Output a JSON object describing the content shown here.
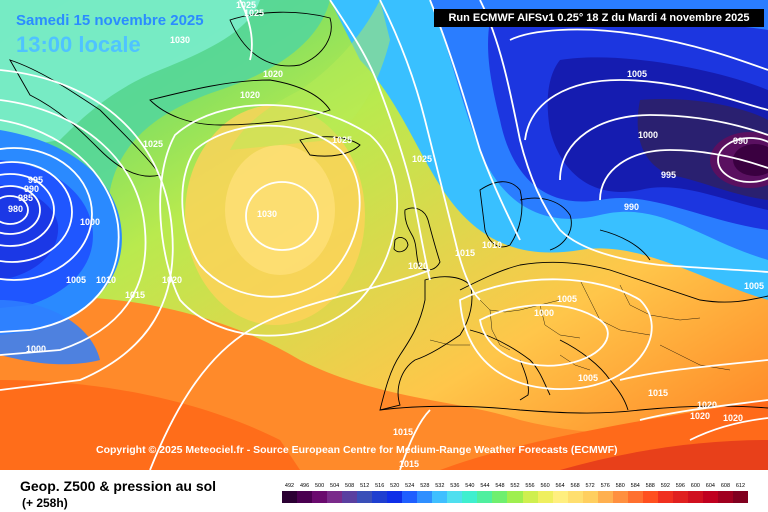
{
  "header": {
    "date_label": "Samedi 15 novembre 2025",
    "time_label": "13:00 locale",
    "run_info": "Run ECMWF AIFSv1 0.25° 18 Z du Mardi 4 novembre 2025"
  },
  "copyright": "Copyright © 2025 Meteociel.fr - Source European Centre for Medium-Range Weather Forecasts (ECMWF)",
  "footer": {
    "title": "Geop. Z500 & pression au sol",
    "subtitle": "(+ 258h)"
  },
  "isobar_labels": [
    "1025",
    "1025",
    "1030",
    "1020",
    "1020",
    "1025",
    "1025",
    "1025",
    "995",
    "990",
    "985",
    "980",
    "1000",
    "1005",
    "1010",
    "1015",
    "1020",
    "1030",
    "1020",
    "1015",
    "1010",
    "1005",
    "1000",
    "1000",
    "990",
    "995",
    "990",
    "1005",
    "1005",
    "1000",
    "1005",
    "1015",
    "1020",
    "1020",
    "1020",
    "1015",
    "1015"
  ],
  "legend": {
    "values": [
      "492",
      "496",
      "500",
      "504",
      "508",
      "512",
      "516",
      "520",
      "524",
      "528",
      "532",
      "536",
      "540",
      "544",
      "548",
      "552",
      "556",
      "560",
      "564",
      "568",
      "572",
      "576",
      "580",
      "584",
      "588",
      "592",
      "596",
      "600",
      "604",
      "608",
      "612"
    ],
    "colors": [
      "#2b0033",
      "#4a0050",
      "#6a0a6e",
      "#7a2a8a",
      "#5a3fa0",
      "#3a4fb8",
      "#1f3fd0",
      "#0f2fe8",
      "#1f5fff",
      "#2f8fff",
      "#3fbfff",
      "#4fdfef",
      "#3fefcf",
      "#4fef9f",
      "#6fef6f",
      "#9fef4f",
      "#cfef4f",
      "#efef5f",
      "#ffef7f",
      "#ffdf6f",
      "#ffcf5f",
      "#ffb04f",
      "#ff903f",
      "#ff702f",
      "#ff501f",
      "#f0301f",
      "#e0201f",
      "#d0101f",
      "#c0001f",
      "#a0001f",
      "#80001f"
    ]
  }
}
